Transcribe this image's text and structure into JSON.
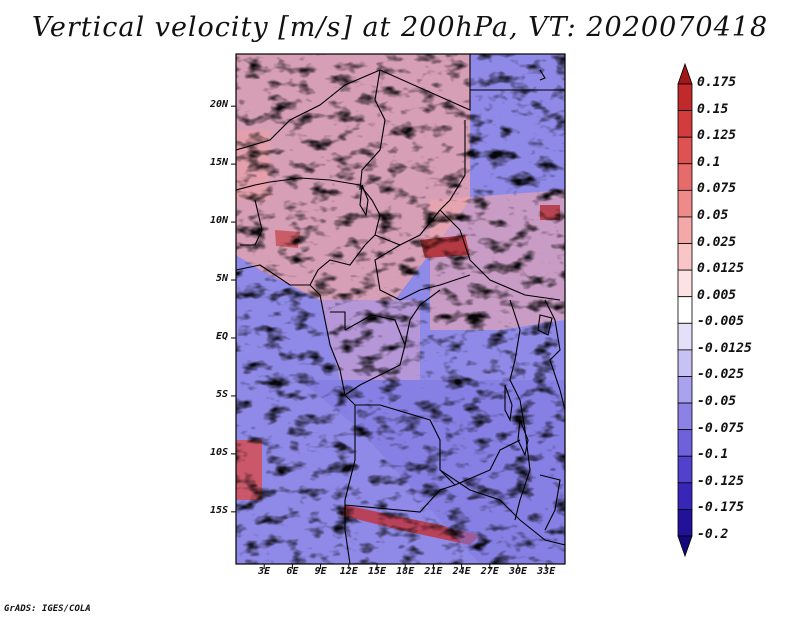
{
  "title": "Vertical velocity [m/s] at 200hPa, VT: 2020070418",
  "footer": "GrADS: IGES/COLA",
  "map": {
    "lat_labels": [
      "20N",
      "15N",
      "10N",
      "5N",
      "EQ",
      "5S",
      "10S",
      "15S"
    ],
    "lat_values": [
      20,
      15,
      10,
      5,
      0,
      -5,
      -10,
      -15
    ],
    "lon_labels": [
      "3E",
      "6E",
      "9E",
      "12E",
      "15E",
      "18E",
      "21E",
      "24E",
      "27E",
      "30E",
      "33E"
    ],
    "lon_values": [
      3,
      6,
      9,
      12,
      15,
      18,
      21,
      24,
      27,
      30,
      33
    ],
    "lat_range": [
      -19.5,
      24.5
    ],
    "lon_range": [
      0,
      35
    ]
  },
  "colorbar": {
    "labels": [
      "0.175",
      "0.15",
      "0.125",
      "0.1",
      "0.075",
      "0.05",
      "0.025",
      "0.0125",
      "0.005",
      "-0.005",
      "-0.0125",
      "-0.025",
      "-0.05",
      "-0.075",
      "-0.1",
      "-0.125",
      "-0.175",
      "-0.2"
    ],
    "colors": [
      "#a01818",
      "#c02a2a",
      "#d23c3c",
      "#de5252",
      "#e66c6c",
      "#ee8a8a",
      "#f4a8a8",
      "#f8c6c6",
      "#fce2e2",
      "#ffffff",
      "#e4e0fa",
      "#c8c2f4",
      "#aaa2ee",
      "#8c82e6",
      "#6e62dc",
      "#5042cc",
      "#3826b8",
      "#22129a",
      "#14087a"
    ]
  }
}
